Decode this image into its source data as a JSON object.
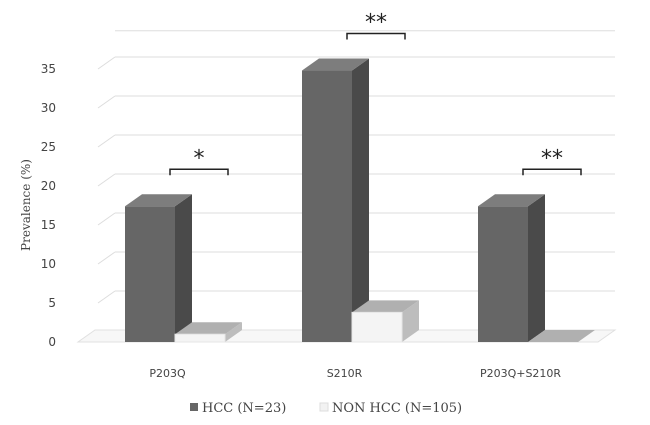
{
  "chart_data": {
    "type": "bar",
    "ylabel": "Prevalence (%)",
    "ylim": [
      0,
      35
    ],
    "yticks": [
      0,
      5,
      10,
      15,
      20,
      25,
      30,
      35
    ],
    "categories": [
      "P203Q",
      "S210R",
      "P203Q+S210R"
    ],
    "series": [
      {
        "name": "HCC (N=23)",
        "values": [
          17.4,
          34.8,
          17.4
        ],
        "color": "#666666"
      },
      {
        "name": "NON HCC (N=105)",
        "values": [
          1.0,
          3.8,
          0.0
        ],
        "color": "#f2f2f2"
      }
    ],
    "significance": [
      "*",
      "**",
      "**"
    ],
    "legend_position": "bottom",
    "grid": true
  }
}
